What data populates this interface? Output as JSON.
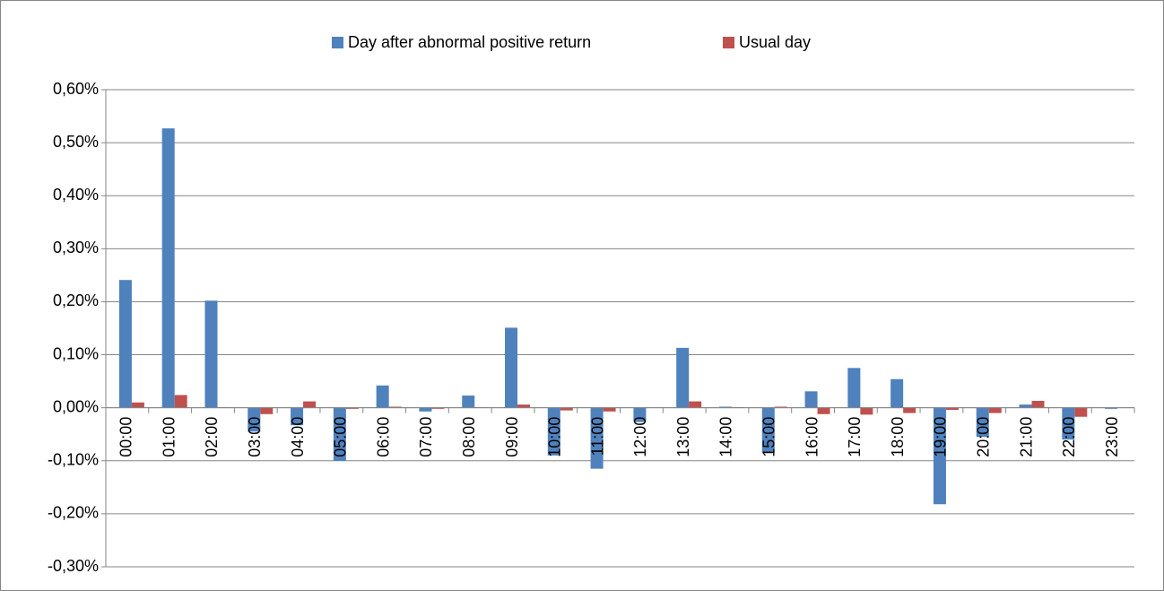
{
  "chart_data": {
    "type": "bar",
    "categories": [
      "00:00",
      "01:00",
      "02:00",
      "03:00",
      "04:00",
      "05:00",
      "06:00",
      "07:00",
      "08:00",
      "09:00",
      "10:00",
      "11:00",
      "12:00",
      "13:00",
      "14:00",
      "15:00",
      "16:00",
      "17:00",
      "18:00",
      "19:00",
      "20:00",
      "21:00",
      "22:00",
      "23:00"
    ],
    "series": [
      {
        "name": "Day after abnormal positive return",
        "color": "#4f81bd",
        "values": [
          0.241,
          0.527,
          0.202,
          -0.045,
          -0.033,
          -0.1,
          0.042,
          -0.007,
          0.023,
          0.151,
          -0.09,
          -0.115,
          -0.027,
          0.113,
          0.002,
          -0.085,
          0.031,
          0.075,
          0.054,
          -0.182,
          -0.055,
          0.006,
          -0.06,
          -0.002
        ]
      },
      {
        "name": "Usual day",
        "color": "#c0504d",
        "values": [
          0.01,
          0.024,
          0.001,
          -0.012,
          0.012,
          -0.002,
          0.002,
          -0.002,
          0.001,
          0.006,
          -0.005,
          -0.007,
          0,
          0.012,
          0.001,
          0.002,
          -0.012,
          -0.013,
          -0.01,
          -0.004,
          -0.01,
          0.013,
          -0.017,
          0
        ]
      }
    ],
    "ylim": [
      -0.3,
      0.6
    ],
    "yticks": [
      {
        "value": -0.3,
        "label": "-0,30%"
      },
      {
        "value": -0.2,
        "label": "-0,20%"
      },
      {
        "value": -0.1,
        "label": "-0,10%"
      },
      {
        "value": 0,
        "label": "0,00%"
      },
      {
        "value": 0.1,
        "label": "0,10%"
      },
      {
        "value": 0.2,
        "label": "0,20%"
      },
      {
        "value": 0.3,
        "label": "0,30%"
      },
      {
        "value": 0.4,
        "label": "0,40%"
      },
      {
        "value": 0.5,
        "label": "0,50%"
      },
      {
        "value": 0.6,
        "label": "0,60%"
      }
    ],
    "grid": true,
    "legend": "top"
  }
}
